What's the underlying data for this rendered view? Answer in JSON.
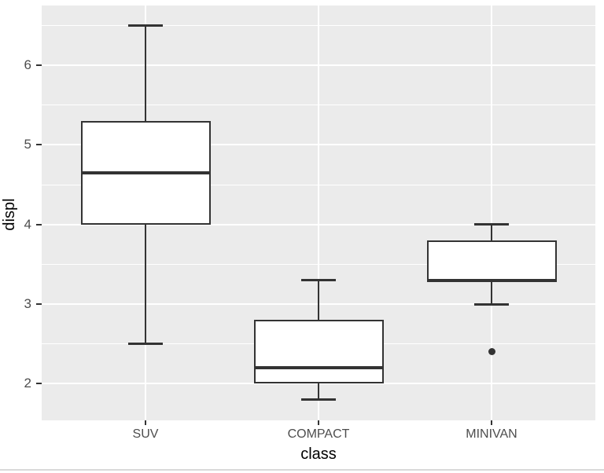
{
  "figure": {
    "background": "#FFFFFF",
    "bottom_border_color": "#D9D9D9"
  },
  "chart_data": {
    "type": "boxplot",
    "title": "",
    "xlabel": "class",
    "ylabel": "displ",
    "categories": [
      "SUV",
      "COMPACT",
      "MINIVAN"
    ],
    "series": [
      {
        "category": "SUV",
        "whisker_low": 2.5,
        "q1": 4.0,
        "median": 4.65,
        "q3": 5.3,
        "whisker_high": 6.5,
        "outliers": []
      },
      {
        "category": "COMPACT",
        "whisker_low": 1.8,
        "q1": 2.0,
        "median": 2.2,
        "q3": 2.8,
        "whisker_high": 3.3,
        "outliers": []
      },
      {
        "category": "MINIVAN",
        "whisker_low": 3.0,
        "q1": 3.3,
        "median": 3.3,
        "q3": 3.8,
        "whisker_high": 4.0,
        "outliers": [
          2.4
        ]
      }
    ],
    "yticks": [
      2,
      3,
      4,
      5,
      6
    ],
    "ytick_labels": [
      "2",
      "3",
      "4",
      "5",
      "6"
    ],
    "yminor": [
      2.5,
      3.5,
      4.5,
      5.5,
      6.5
    ],
    "ylim": [
      1.54,
      6.75
    ],
    "xlim": [
      0.4,
      3.6
    ],
    "box_width": 0.75,
    "cap_width": 0.2,
    "grid": true,
    "legend": "none",
    "colors": {
      "panel_bg": "#EBEBEB",
      "gridline": "#FFFFFF",
      "box_stroke": "#333333",
      "box_fill": "#FFFFFF",
      "outlier": "#333333",
      "axis_text": "#4D4D4D",
      "axis_title": "#000000",
      "tick_mark": "#333333"
    }
  }
}
